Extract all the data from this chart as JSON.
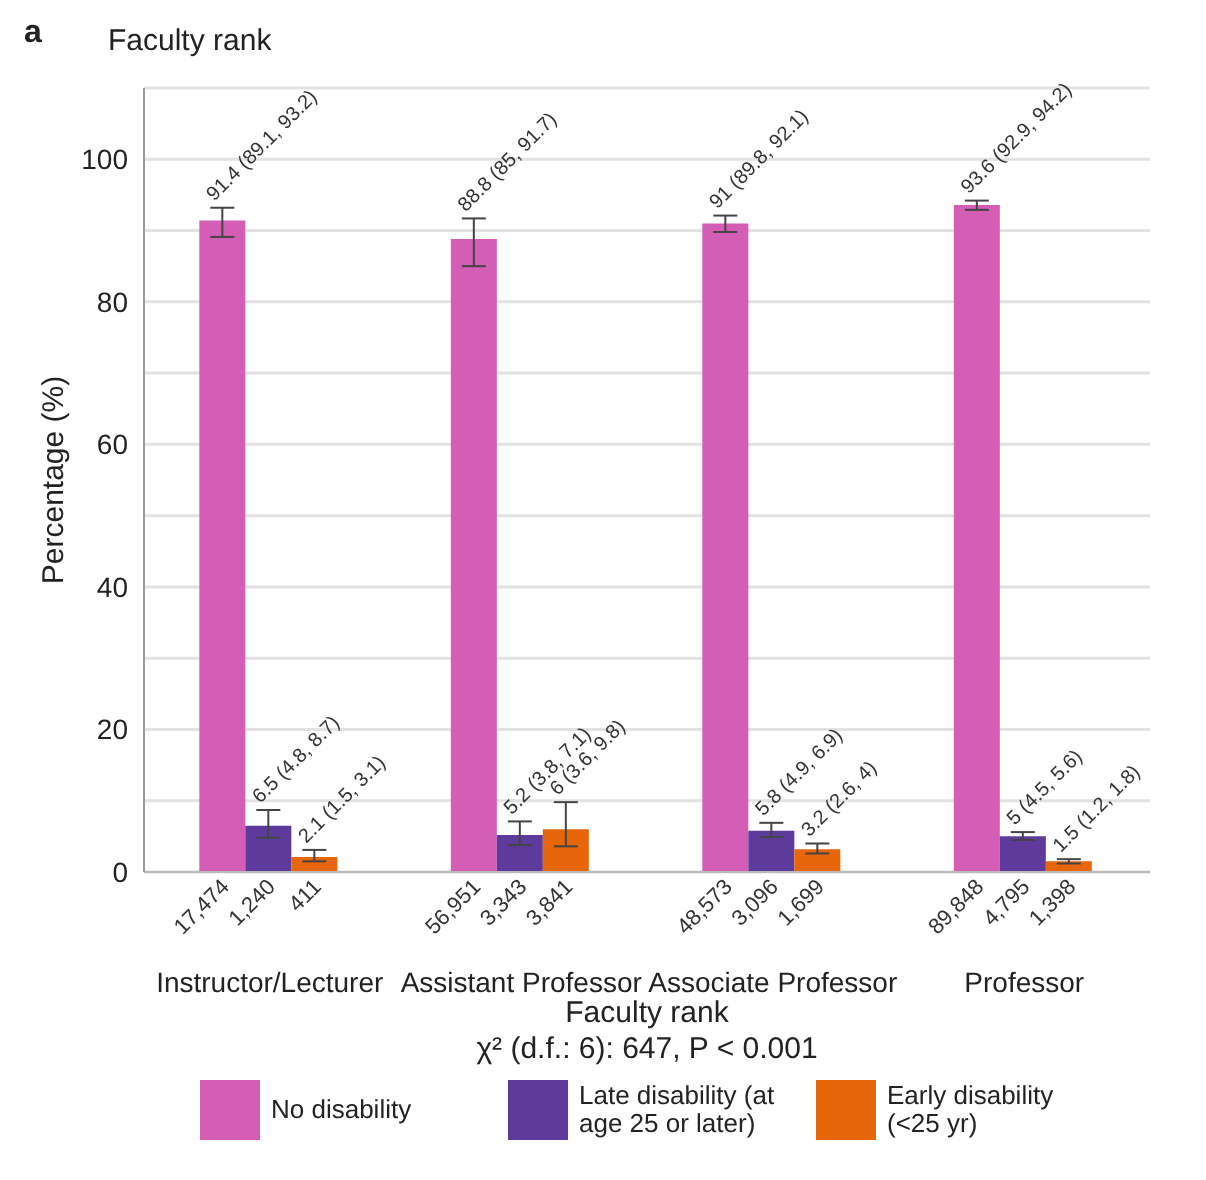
{
  "chart_data": {
    "type": "bar",
    "title": "Faculty rank",
    "xlabel": "Faculty rank",
    "ylabel": "Percentage (%)",
    "categories": [
      "Instructor/Lecturer",
      "Assistant Professor",
      "Associate Professor",
      "Professor"
    ],
    "series": [
      {
        "name": "No disability",
        "color": "#d45db5",
        "values": [
          91.4,
          88.8,
          91,
          93.6
        ],
        "errors": [
          [
            89.1,
            93.2
          ],
          [
            85,
            91.7
          ],
          [
            89.8,
            92.1
          ],
          [
            92.9,
            94.2
          ]
        ],
        "value_labels": [
          "91.4 (89.1, 93.2)",
          "88.8 (85, 91.7)",
          "91 (89.8, 92.1)",
          "93.6 (92.9, 94.2)"
        ]
      },
      {
        "name": "Late disability (at age 25 or later)",
        "color": "#5e3a9c",
        "values": [
          6.5,
          5.2,
          5.8,
          5
        ],
        "errors": [
          [
            4.8,
            8.7
          ],
          [
            3.8,
            7.1
          ],
          [
            4.9,
            6.9
          ],
          [
            4.5,
            5.6
          ]
        ],
        "value_labels": [
          "6.5 (4.8, 8.7)",
          "5.2 (3.8, 7.1)",
          "5.8 (4.9, 6.9)",
          "5 (4.5, 5.6)"
        ]
      },
      {
        "name": "Early disability (<25 yr)",
        "color": "#e8660a",
        "values": [
          2.1,
          6,
          3.2,
          1.5
        ],
        "errors": [
          [
            1.5,
            3.1
          ],
          [
            3.6,
            9.8
          ],
          [
            2.6,
            4
          ],
          [
            1.2,
            1.8
          ]
        ],
        "value_labels": [
          "2.1 (1.5, 3.1)",
          "6 (3.6, 9.8)",
          "3.2 (2.6, 4)",
          "1.5 (1.2, 1.8)"
        ]
      }
    ],
    "ylim": [
      0,
      110
    ],
    "yticks": [
      0,
      {
        "value": 10,
        "label": null
      },
      20,
      {
        "value": 30,
        "label": null
      },
      40,
      {
        "value": 50,
        "label": null
      },
      60,
      {
        "value": 70,
        "label": null
      },
      80,
      {
        "value": 90,
        "label": null
      },
      100,
      {
        "value": 110,
        "label": null
      }
    ],
    "grid": "y",
    "legend": "bottom",
    "annotations": [
      "a",
      {
        "text": "17,474",
        "x": "Instructor/Lecturer",
        "y": 0
      },
      {
        "text": "1,240",
        "x": "Instructor/Lecturer",
        "y": 0
      },
      {
        "text": "411",
        "x": "Instructor/Lecturer",
        "y": 0
      },
      {
        "text": "56,951",
        "x": "Assistant Professor",
        "y": 0
      },
      {
        "text": "3,343",
        "x": "Assistant Professor",
        "y": 0
      },
      {
        "text": "3,841",
        "x": "Assistant Professor",
        "y": 0
      },
      {
        "text": "48,573",
        "x": "Associate Professor",
        "y": 0
      },
      {
        "text": "3,096",
        "x": "Associate Professor",
        "y": 0
      },
      {
        "text": "1,699",
        "x": "Associate Professor",
        "y": 0
      },
      {
        "text": "89,848",
        "x": "Professor",
        "y": 0
      },
      {
        "text": "4,795",
        "x": "Professor",
        "y": 0
      },
      {
        "text": "1,398",
        "x": "Professor",
        "y": 0
      },
      "χ² (d.f.: 6): 647, P < 0.001"
    ]
  }
}
